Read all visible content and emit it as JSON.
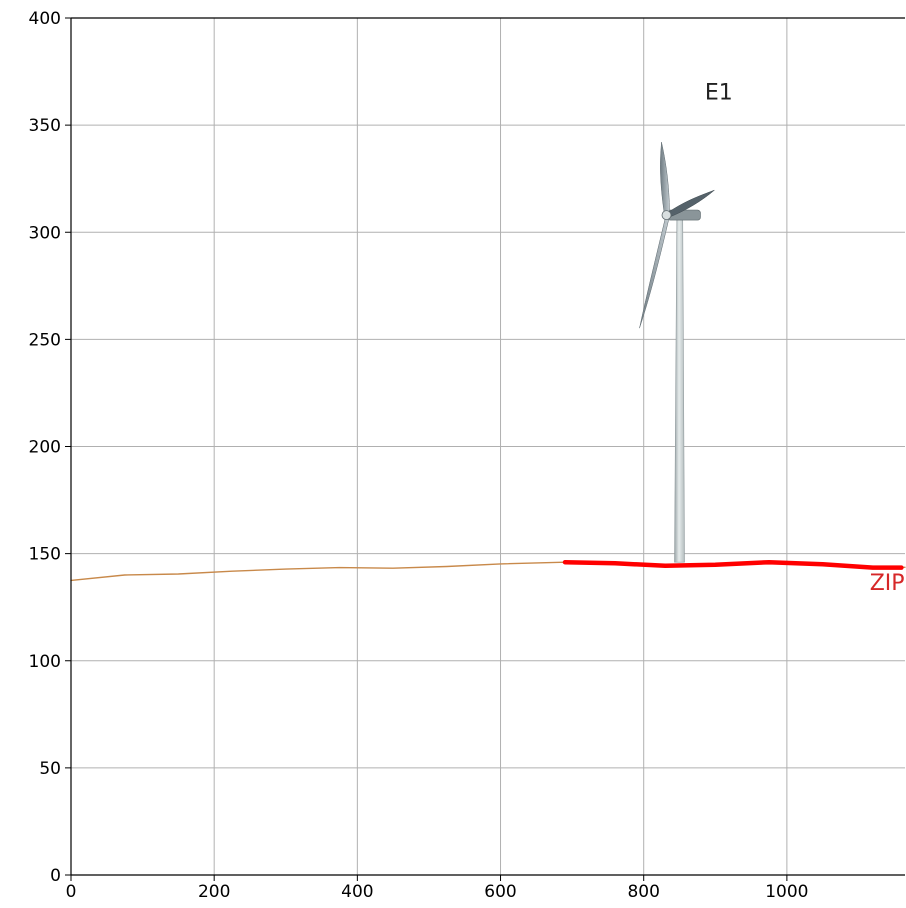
{
  "chart_data": {
    "type": "line",
    "title": "",
    "xlabel": "",
    "ylabel": "",
    "xlim": [
      0,
      1165
    ],
    "ylim": [
      0,
      400
    ],
    "x_ticks": [
      0,
      200,
      400,
      600,
      800,
      1000
    ],
    "y_ticks": [
      0,
      50,
      100,
      150,
      200,
      250,
      300,
      350,
      400
    ],
    "grid": true,
    "series": [
      {
        "color": "#c8894a",
        "x": [
          0,
          75,
          150,
          225,
          300,
          375,
          450,
          525,
          600,
          690,
          760,
          830,
          900,
          975,
          1050,
          1120,
          1165
        ],
        "y": [
          137.5,
          140,
          140.5,
          141.8,
          142.8,
          143.5,
          143.2,
          144,
          145.2,
          146,
          145.5,
          144.3,
          144.8,
          146,
          145,
          143.5,
          143.6
        ]
      },
      {
        "color": "#ff0000",
        "x": [
          690,
          760,
          830,
          900,
          975,
          1050,
          1120,
          1160
        ],
        "y": [
          146,
          145.5,
          144.3,
          144.8,
          146,
          145,
          143.5,
          143.5
        ]
      }
    ],
    "annotations": [
      {
        "text": "E1",
        "x": 905,
        "y": 362,
        "color": "#222222"
      },
      {
        "text": "ZIP",
        "x": 1140,
        "y": 133,
        "color": "#d62728"
      }
    ],
    "turbine": {
      "x": 850,
      "base_y": 146,
      "hub_y": 308
    }
  }
}
